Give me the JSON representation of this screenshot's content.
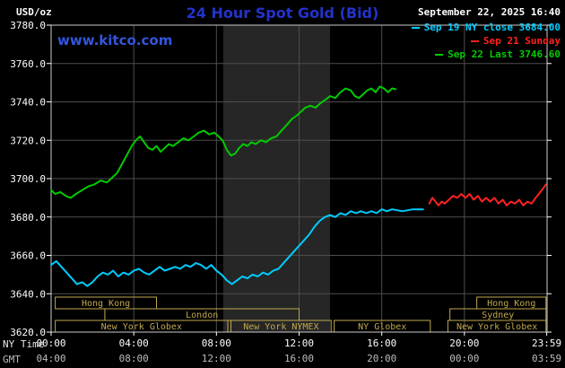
{
  "header": {
    "unit_label": "USD/oz",
    "title": "24 Hour Spot Gold (Bid)",
    "datetime": "September 22, 2025 16:40",
    "site_link": "www.kitco.com"
  },
  "legend": {
    "items": [
      {
        "label": "Sep 19 NY close 3684.00",
        "color": "#00ccff"
      },
      {
        "label": "Sep 21 Sunday",
        "color": "#ff2222"
      },
      {
        "label": "Sep 22 Last 3746.60",
        "color": "#00cc00"
      }
    ]
  },
  "axes": {
    "ny_time_label": "NY Time",
    "gmt_label": "GMT",
    "y_ticks": [
      {
        "value": 3780,
        "label": "3780.0"
      },
      {
        "value": 3760,
        "label": "3760.0"
      },
      {
        "value": 3740,
        "label": "3740.0"
      },
      {
        "value": 3720,
        "label": "3720.0"
      },
      {
        "value": 3700,
        "label": "3700.0"
      },
      {
        "value": 3680,
        "label": "3680.0"
      },
      {
        "value": 3660,
        "label": "3660.0"
      },
      {
        "value": 3640,
        "label": "3640.0"
      },
      {
        "value": 3620,
        "label": "3620.0"
      }
    ],
    "x_ticks": [
      {
        "hour": 0,
        "ny": "00:00",
        "gmt": "04:00"
      },
      {
        "hour": 4,
        "ny": "04:00",
        "gmt": "08:00"
      },
      {
        "hour": 8,
        "ny": "08:00",
        "gmt": "12:00"
      },
      {
        "hour": 12,
        "ny": "12:00",
        "gmt": "16:00"
      },
      {
        "hour": 16,
        "ny": "16:00",
        "gmt": "20:00"
      },
      {
        "hour": 20,
        "ny": "20:00",
        "gmt": "00:00"
      },
      {
        "hour": 23.983,
        "ny": "23:59",
        "gmt": "03:59"
      }
    ]
  },
  "sessions": [
    {
      "row": 0,
      "label": "Hong Kong",
      "start": 0.2,
      "end": 5.1
    },
    {
      "row": 0,
      "label": "Hong Kong",
      "start": 20.6,
      "end": 23.95
    },
    {
      "row": 1,
      "label": "London",
      "start": 2.6,
      "end": 12.0
    },
    {
      "row": 1,
      "label": "Sydney",
      "start": 19.3,
      "end": 23.95
    },
    {
      "row": 2,
      "label": "New York Globex",
      "start": 0.2,
      "end": 8.55
    },
    {
      "row": 2,
      "label": "New York NYMEX",
      "start": 8.7,
      "end": 13.55
    },
    {
      "row": 2,
      "label": "NY Globex",
      "start": 13.7,
      "end": 18.35
    },
    {
      "row": 2,
      "label": "New York Globex",
      "start": 19.2,
      "end": 23.95
    }
  ],
  "colors": {
    "background": "#000000",
    "grid": "#4d4d4d",
    "border": "#cccccc",
    "band": "#262626",
    "session": "#bfa94e",
    "axis_text": "#ffffff",
    "gmt_text": "#bdbdbd",
    "title_blue": "#2333cc",
    "link_blue": "#3355dd"
  },
  "chart_data": {
    "type": "line",
    "title": "24 Hour Spot Gold (Bid)",
    "xlabel": "NY Time",
    "ylabel": "USD/oz",
    "xlim_hours": [
      0,
      24
    ],
    "ylim": [
      3620,
      3780
    ],
    "grid": true,
    "legend_position": "top-right",
    "highlight_band_hours": [
      8.33,
      13.5
    ],
    "series": [
      {
        "id": "sep19",
        "name": "Sep 19 NY close 3684.00",
        "color": "#00ccff",
        "points": [
          [
            0,
            3655
          ],
          [
            0.25,
            3657
          ],
          [
            0.5,
            3654
          ],
          [
            0.75,
            3651
          ],
          [
            1.0,
            3648
          ],
          [
            1.25,
            3645
          ],
          [
            1.5,
            3646
          ],
          [
            1.75,
            3644
          ],
          [
            2.0,
            3646
          ],
          [
            2.25,
            3649
          ],
          [
            2.5,
            3651
          ],
          [
            2.75,
            3650
          ],
          [
            3.0,
            3652
          ],
          [
            3.25,
            3649
          ],
          [
            3.5,
            3651
          ],
          [
            3.75,
            3650
          ],
          [
            4.0,
            3652
          ],
          [
            4.25,
            3653
          ],
          [
            4.5,
            3651
          ],
          [
            4.75,
            3650
          ],
          [
            5.0,
            3652
          ],
          [
            5.25,
            3654
          ],
          [
            5.5,
            3652
          ],
          [
            5.75,
            3653
          ],
          [
            6.0,
            3654
          ],
          [
            6.25,
            3653
          ],
          [
            6.5,
            3655
          ],
          [
            6.75,
            3654
          ],
          [
            7.0,
            3656
          ],
          [
            7.25,
            3655
          ],
          [
            7.5,
            3653
          ],
          [
            7.75,
            3655
          ],
          [
            8.0,
            3652
          ],
          [
            8.25,
            3650
          ],
          [
            8.5,
            3647
          ],
          [
            8.75,
            3645
          ],
          [
            9.0,
            3647
          ],
          [
            9.25,
            3649
          ],
          [
            9.5,
            3648
          ],
          [
            9.75,
            3650
          ],
          [
            10.0,
            3649
          ],
          [
            10.25,
            3651
          ],
          [
            10.5,
            3650
          ],
          [
            10.75,
            3652
          ],
          [
            11.0,
            3653
          ],
          [
            11.25,
            3656
          ],
          [
            11.5,
            3659
          ],
          [
            11.75,
            3662
          ],
          [
            12.0,
            3665
          ],
          [
            12.25,
            3668
          ],
          [
            12.5,
            3671
          ],
          [
            12.75,
            3675
          ],
          [
            13.0,
            3678
          ],
          [
            13.25,
            3680
          ],
          [
            13.5,
            3681
          ],
          [
            13.75,
            3680
          ],
          [
            14.0,
            3682
          ],
          [
            14.25,
            3681
          ],
          [
            14.5,
            3683
          ],
          [
            14.75,
            3682
          ],
          [
            15.0,
            3683
          ],
          [
            15.25,
            3682
          ],
          [
            15.5,
            3683
          ],
          [
            15.75,
            3682
          ],
          [
            16.0,
            3684
          ],
          [
            16.25,
            3683
          ],
          [
            16.5,
            3684
          ],
          [
            17.0,
            3683
          ],
          [
            17.5,
            3684
          ],
          [
            18.0,
            3684
          ]
        ]
      },
      {
        "id": "sep21",
        "name": "Sep 21 Sunday",
        "color": "#ff2222",
        "points": [
          [
            18.3,
            3687
          ],
          [
            18.45,
            3690
          ],
          [
            18.6,
            3688
          ],
          [
            18.75,
            3686
          ],
          [
            18.9,
            3688
          ],
          [
            19.05,
            3687
          ],
          [
            19.25,
            3689
          ],
          [
            19.45,
            3691
          ],
          [
            19.65,
            3690
          ],
          [
            19.85,
            3692
          ],
          [
            20.05,
            3690
          ],
          [
            20.25,
            3692
          ],
          [
            20.45,
            3689
          ],
          [
            20.65,
            3691
          ],
          [
            20.85,
            3688
          ],
          [
            21.05,
            3690
          ],
          [
            21.25,
            3688
          ],
          [
            21.45,
            3690
          ],
          [
            21.65,
            3687
          ],
          [
            21.85,
            3689
          ],
          [
            22.05,
            3686
          ],
          [
            22.25,
            3688
          ],
          [
            22.45,
            3687
          ],
          [
            22.65,
            3689
          ],
          [
            22.85,
            3686
          ],
          [
            23.05,
            3688
          ],
          [
            23.25,
            3687
          ],
          [
            23.45,
            3690
          ],
          [
            23.6,
            3692
          ],
          [
            23.75,
            3694
          ],
          [
            23.95,
            3697
          ]
        ]
      },
      {
        "id": "sep22",
        "name": "Sep 22 Last 3746.60",
        "color": "#00cc00",
        "points": [
          [
            0,
            3694
          ],
          [
            0.2,
            3692
          ],
          [
            0.45,
            3693
          ],
          [
            0.7,
            3691
          ],
          [
            0.95,
            3690
          ],
          [
            1.2,
            3692
          ],
          [
            1.5,
            3694
          ],
          [
            1.8,
            3696
          ],
          [
            2.1,
            3697
          ],
          [
            2.4,
            3699
          ],
          [
            2.7,
            3698
          ],
          [
            3.0,
            3701
          ],
          [
            3.2,
            3703
          ],
          [
            3.45,
            3708
          ],
          [
            3.7,
            3713
          ],
          [
            3.9,
            3717
          ],
          [
            4.1,
            3720
          ],
          [
            4.3,
            3722
          ],
          [
            4.5,
            3719
          ],
          [
            4.7,
            3716
          ],
          [
            4.9,
            3715
          ],
          [
            5.1,
            3717
          ],
          [
            5.3,
            3714
          ],
          [
            5.5,
            3716
          ],
          [
            5.7,
            3718
          ],
          [
            5.9,
            3717
          ],
          [
            6.15,
            3719
          ],
          [
            6.4,
            3721
          ],
          [
            6.65,
            3720
          ],
          [
            6.9,
            3722
          ],
          [
            7.15,
            3724
          ],
          [
            7.4,
            3725
          ],
          [
            7.65,
            3723
          ],
          [
            7.9,
            3724
          ],
          [
            8.1,
            3722
          ],
          [
            8.3,
            3720
          ],
          [
            8.5,
            3715
          ],
          [
            8.7,
            3712
          ],
          [
            8.9,
            3713
          ],
          [
            9.1,
            3716
          ],
          [
            9.3,
            3718
          ],
          [
            9.5,
            3717
          ],
          [
            9.7,
            3719
          ],
          [
            9.9,
            3718
          ],
          [
            10.15,
            3720
          ],
          [
            10.4,
            3719
          ],
          [
            10.65,
            3721
          ],
          [
            10.9,
            3722
          ],
          [
            11.15,
            3725
          ],
          [
            11.4,
            3728
          ],
          [
            11.65,
            3731
          ],
          [
            11.9,
            3733
          ],
          [
            12.1,
            3735
          ],
          [
            12.3,
            3737
          ],
          [
            12.55,
            3738
          ],
          [
            12.8,
            3737
          ],
          [
            13.0,
            3739
          ],
          [
            13.25,
            3741
          ],
          [
            13.5,
            3743
          ],
          [
            13.75,
            3742
          ],
          [
            14.0,
            3745
          ],
          [
            14.25,
            3747
          ],
          [
            14.5,
            3746
          ],
          [
            14.7,
            3743
          ],
          [
            14.9,
            3742
          ],
          [
            15.1,
            3744
          ],
          [
            15.3,
            3746
          ],
          [
            15.5,
            3747
          ],
          [
            15.7,
            3745
          ],
          [
            15.9,
            3748
          ],
          [
            16.1,
            3747
          ],
          [
            16.3,
            3745
          ],
          [
            16.5,
            3747
          ],
          [
            16.67,
            3746.6
          ]
        ]
      }
    ]
  }
}
